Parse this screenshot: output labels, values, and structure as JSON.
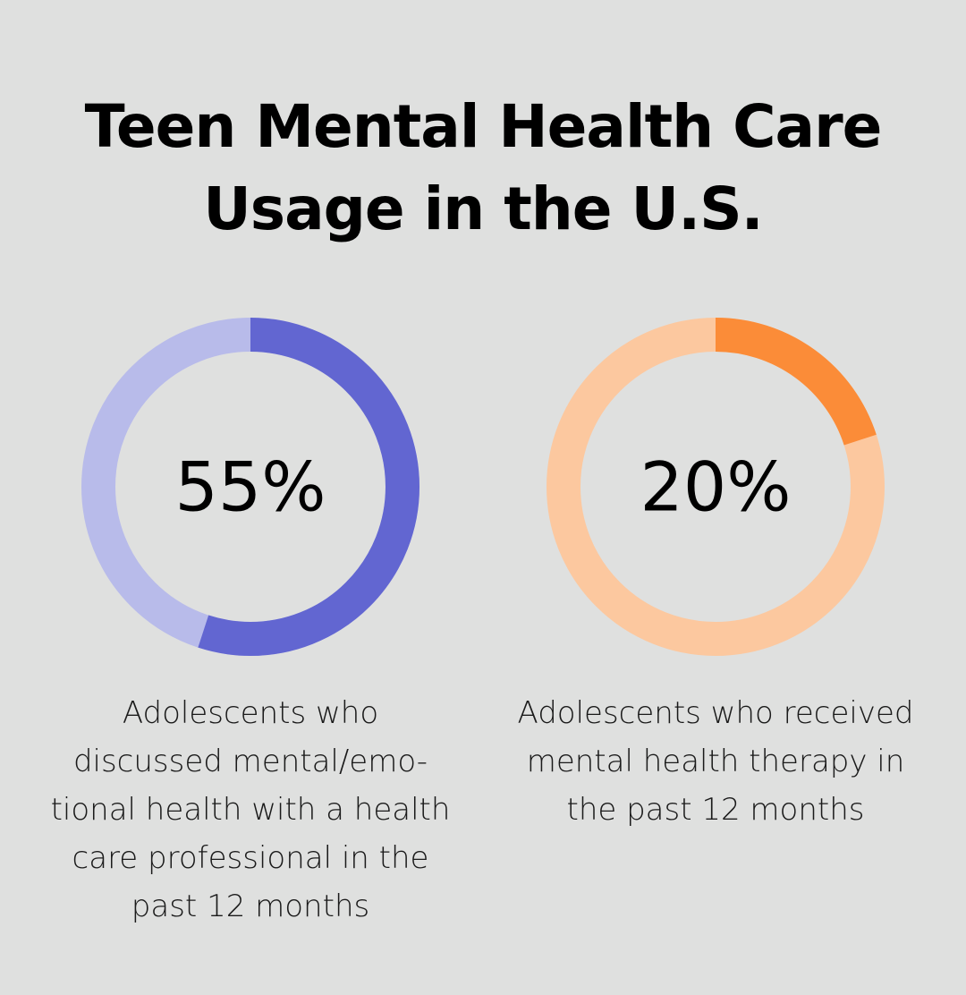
{
  "title_lines": [
    "Teen Mental Health Care",
    "Usage in the U.S."
  ],
  "chart_data": {
    "type": "pie",
    "charts": [
      {
        "value": 55,
        "label": "55%",
        "caption_lines": [
          "Adolescents who",
          "discussed mental/emo-",
          "tional health with a health",
          "care professional in the",
          "past 12 months"
        ],
        "fill_color": "#6266d1",
        "track_color": "#b8bbea"
      },
      {
        "value": 20,
        "label": "20%",
        "caption_lines": [
          "Adolescents who received",
          "mental health therapy in",
          "the past 12 months"
        ],
        "fill_color": "#fb8c38",
        "track_color": "#fcc89f"
      }
    ]
  }
}
